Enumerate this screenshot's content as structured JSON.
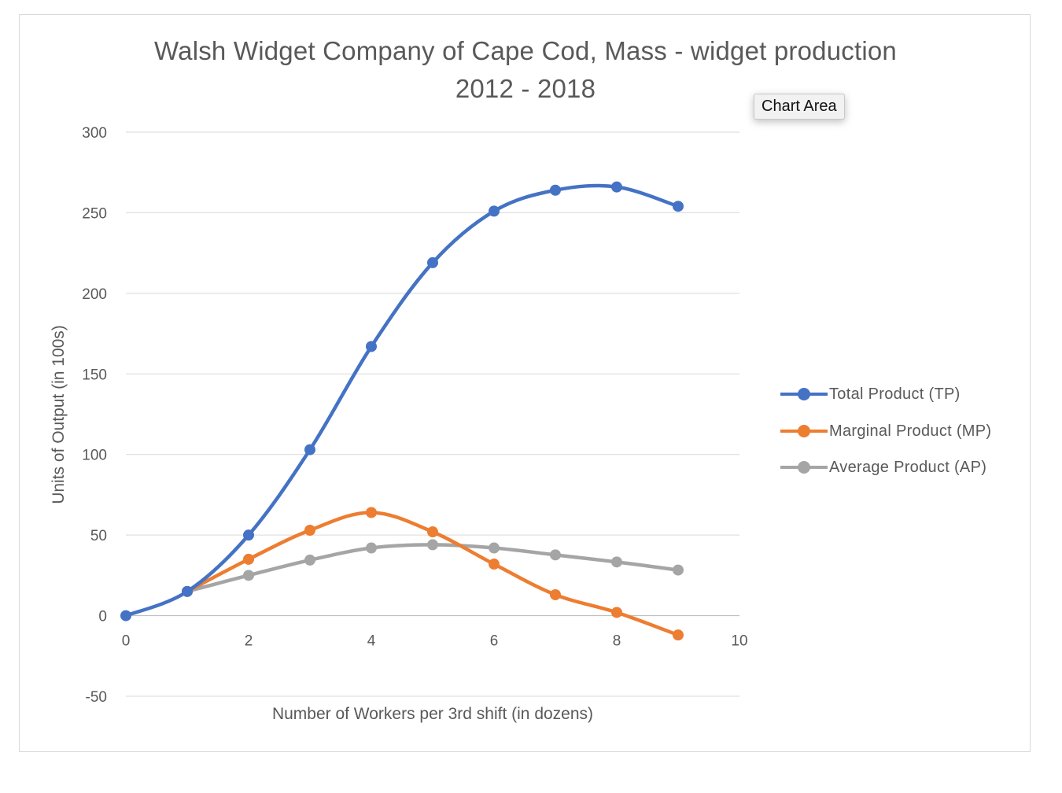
{
  "title": [
    "Walsh Widget Company of Cape Cod, Mass - widget production",
    "2012 - 2018"
  ],
  "tooltip": "Chart Area",
  "colors": {
    "tp": "#4472C4",
    "mp": "#ED7D31",
    "ap": "#A5A5A5",
    "grid": "#d9d9d9",
    "text": "#595959"
  },
  "chart_data": {
    "type": "line",
    "smooth": true,
    "title": "Walsh Widget Company of Cape Cod, Mass - widget production 2012 - 2018",
    "xlabel": "Number of Workers per 3rd shift (in dozens)",
    "ylabel": "Units of Output (in 100s)",
    "xlim": [
      0,
      10
    ],
    "ylim": [
      -50,
      300
    ],
    "xticks": [
      0,
      2,
      4,
      6,
      8,
      10
    ],
    "yticks": [
      -50,
      0,
      50,
      100,
      150,
      200,
      250,
      300
    ],
    "grid": true,
    "legend": "right",
    "series": [
      {
        "name": "Total Product (TP)",
        "color": "#4472C4",
        "x": [
          0,
          1,
          2,
          3,
          4,
          5,
          6,
          7,
          8,
          9
        ],
        "y": [
          0,
          15,
          50,
          103,
          167,
          219,
          251,
          264,
          266,
          254
        ]
      },
      {
        "name": "Marginal Product (MP)",
        "color": "#ED7D31",
        "x": [
          1,
          2,
          3,
          4,
          5,
          6,
          7,
          8,
          9
        ],
        "y": [
          15,
          35,
          53,
          64,
          52,
          32,
          13,
          2,
          -12
        ]
      },
      {
        "name": "Average Product (AP)",
        "color": "#A5A5A5",
        "x": [
          1,
          2,
          3,
          4,
          5,
          6,
          7,
          8,
          9
        ],
        "y": [
          15,
          25,
          34.5,
          42,
          44,
          42,
          37.7,
          33.3,
          28.3
        ]
      }
    ]
  }
}
